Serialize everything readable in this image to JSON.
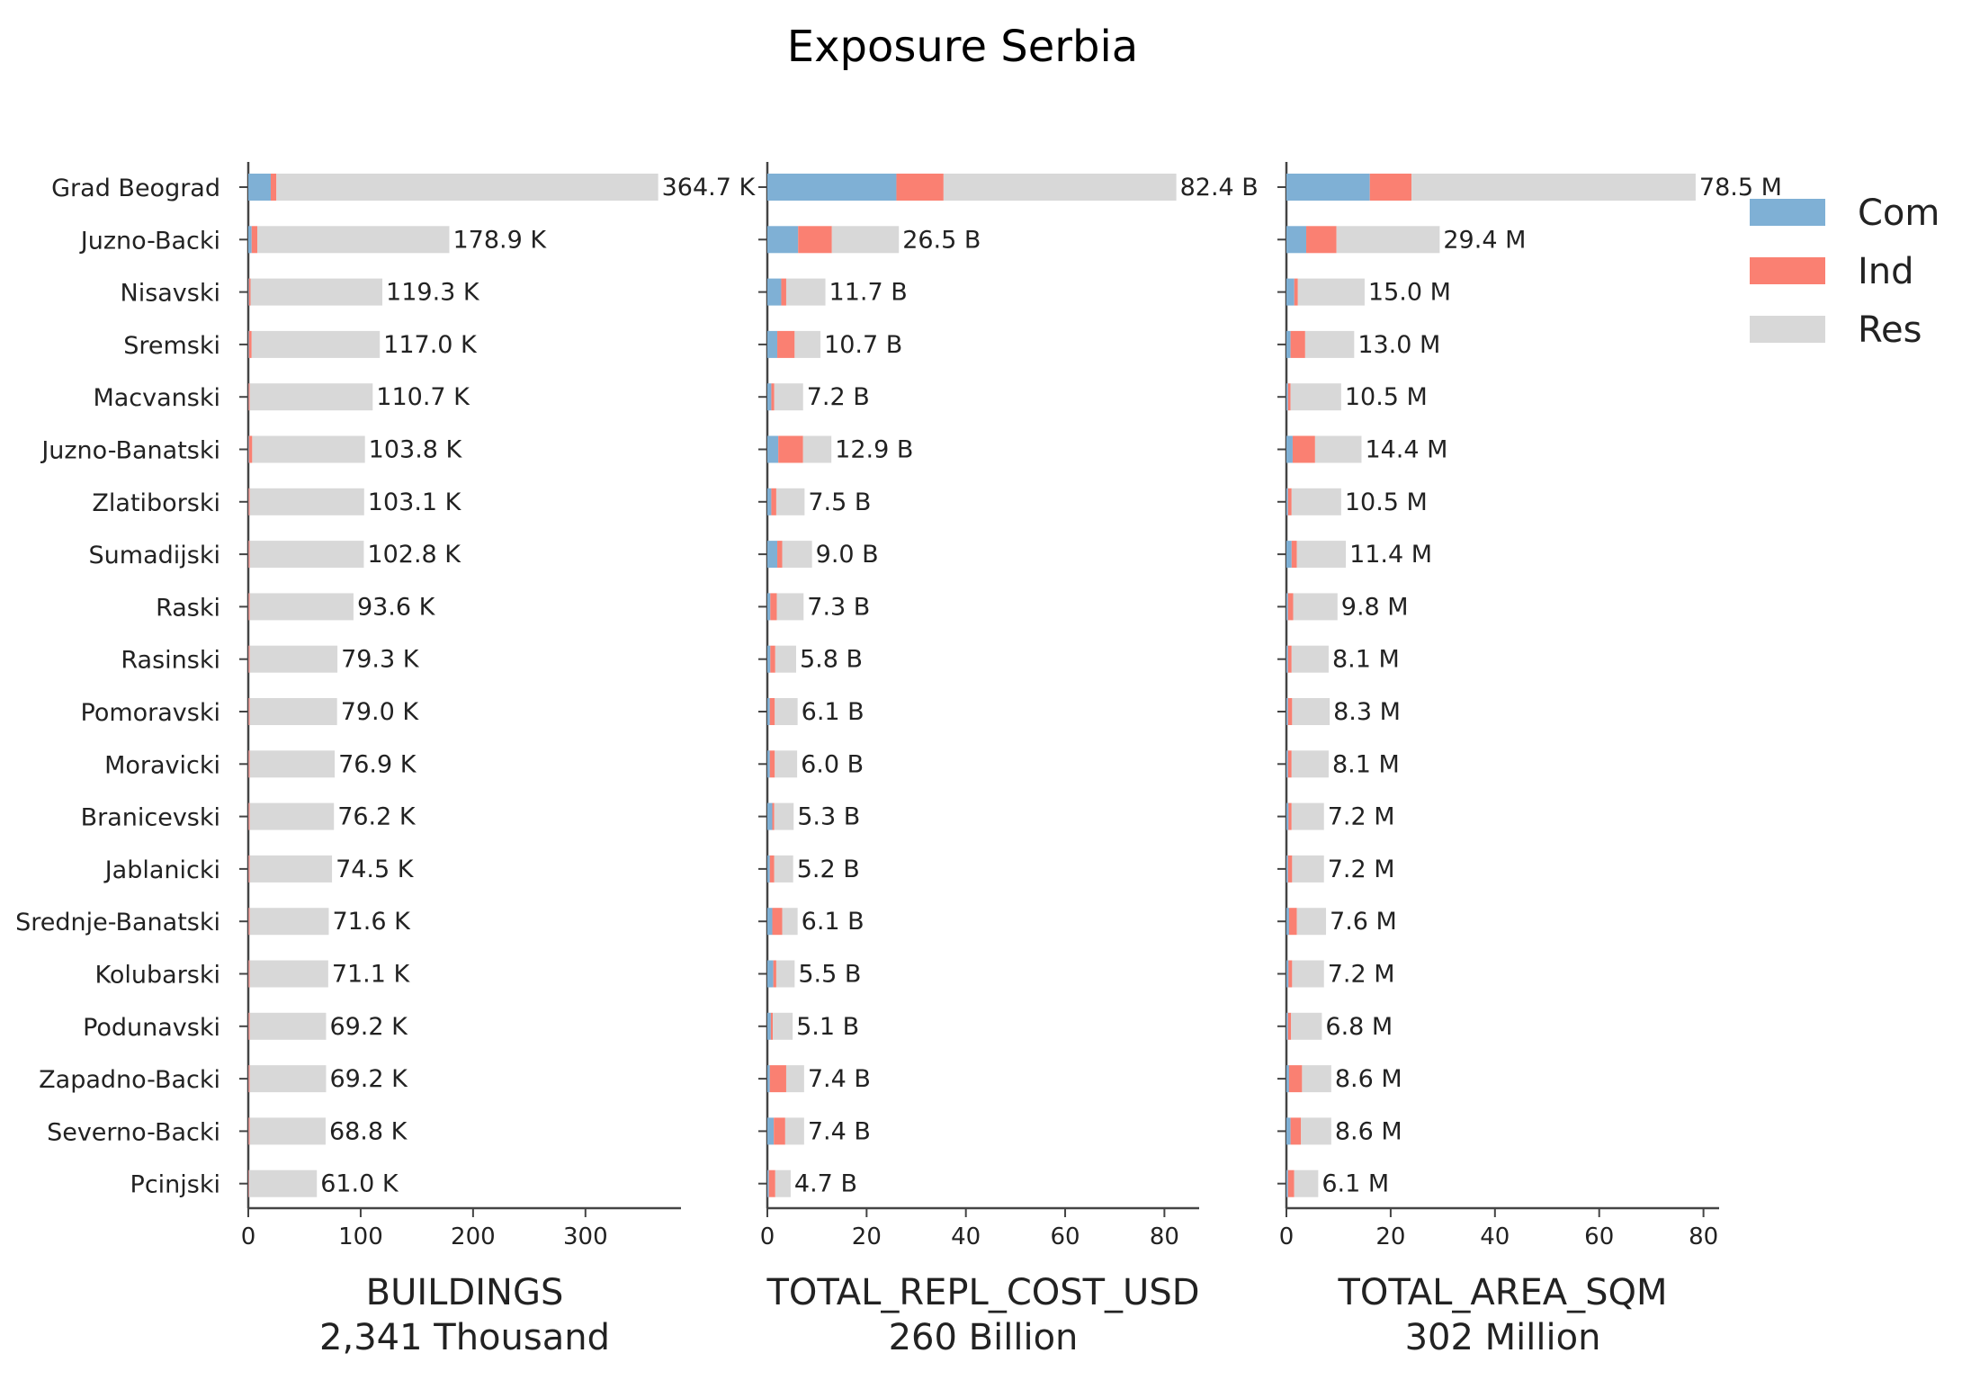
{
  "chart_data": {
    "type": "bar",
    "title": "Exposure Serbia",
    "categories": [
      "Grad Beograd",
      "Juzno-Backi",
      "Nisavski",
      "Sremski",
      "Macvanski",
      "Juzno-Banatski",
      "Zlatiborski",
      "Sumadijski",
      "Raski",
      "Rasinski",
      "Pomoravski",
      "Moravicki",
      "Branicevski",
      "Jablanicki",
      "Srednje-Banatski",
      "Kolubarski",
      "Podunavski",
      "Zapadno-Backi",
      "Severno-Backi",
      "Pcinjski"
    ],
    "legend": {
      "position": "top-right",
      "entries": [
        {
          "name": "Com",
          "color": "#7fb0d5"
        },
        {
          "name": "Ind",
          "color": "#fa8072"
        },
        {
          "name": "Res",
          "color": "#d8d8d8"
        }
      ]
    },
    "grid": false,
    "panels": [
      {
        "xlabel": "BUILDINGS",
        "subtitle": "2,341 Thousand",
        "xlim": [
          0,
          385
        ],
        "xticks": [
          0,
          100,
          200,
          300
        ],
        "totals_labels": [
          "364.7 K",
          "178.9 K",
          "119.3 K",
          "117.0 K",
          "110.7 K",
          "103.8 K",
          "103.1 K",
          "102.8 K",
          "93.6 K",
          "79.3 K",
          "79.0 K",
          "76.9 K",
          "76.2 K",
          "74.5 K",
          "71.6 K",
          "71.1 K",
          "69.2 K",
          "69.2 K",
          "68.8 K",
          "61.0 K"
        ],
        "series": [
          {
            "name": "Com",
            "values": [
              20,
              3,
              0.5,
              0.5,
              0.3,
              0.5,
              0.3,
              0.3,
              0.3,
              0.3,
              0.3,
              0.3,
              0.3,
              0.3,
              0.3,
              0.3,
              0.3,
              0.3,
              0.3,
              0.3
            ]
          },
          {
            "name": "Ind",
            "values": [
              5,
              5,
              1.5,
              2.5,
              1,
              3,
              1,
              1,
              1,
              1,
              1,
              1,
              1,
              1,
              1,
              1,
              1,
              1,
              1,
              0.5
            ]
          },
          {
            "name": "Res",
            "values": [
              339.7,
              170.9,
              117.3,
              114.0,
              109.4,
              100.3,
              101.8,
              101.5,
              92.3,
              78.0,
              77.7,
              75.6,
              74.9,
              73.2,
              70.3,
              69.8,
              67.9,
              67.9,
              67.5,
              60.2
            ]
          }
        ]
      },
      {
        "xlabel": "TOTAL_REPL_COST_USD",
        "subtitle": "260 Billion",
        "xlim": [
          0,
          87
        ],
        "xticks": [
          0,
          20,
          40,
          60,
          80
        ],
        "totals_labels": [
          "82.4 B",
          "26.5 B",
          "11.7 B",
          "10.7 B",
          "7.2 B",
          "12.9 B",
          "7.5 B",
          "9.0 B",
          "7.3 B",
          "5.8 B",
          "6.1 B",
          "6.0 B",
          "5.3 B",
          "5.2 B",
          "6.1 B",
          "5.5 B",
          "5.1 B",
          "7.4 B",
          "7.4 B",
          "4.7 B"
        ],
        "series": [
          {
            "name": "Com",
            "values": [
              26,
              6.2,
              2.8,
              2.0,
              0.8,
              2.2,
              0.8,
              2.0,
              0.6,
              0.6,
              0.5,
              0.5,
              1.0,
              0.5,
              1.0,
              1.2,
              0.7,
              0.5,
              1.3,
              0.3
            ]
          },
          {
            "name": "Ind",
            "values": [
              9.5,
              6.8,
              1.0,
              3.5,
              0.6,
              5.0,
              1.0,
              1.0,
              1.3,
              1.0,
              1.0,
              1.0,
              0.4,
              0.9,
              2.0,
              0.6,
              0.4,
              3.3,
              2.3,
              1.3
            ]
          },
          {
            "name": "Res",
            "values": [
              46.9,
              13.5,
              7.9,
              5.2,
              5.8,
              5.7,
              5.7,
              6.0,
              5.4,
              4.2,
              4.6,
              4.5,
              3.9,
              3.8,
              3.1,
              3.7,
              4.0,
              3.6,
              3.8,
              3.1
            ]
          }
        ]
      },
      {
        "xlabel": "TOTAL_AREA_SQM",
        "subtitle": "302 Million",
        "xlim": [
          0,
          83
        ],
        "xticks": [
          0,
          20,
          40,
          60,
          80
        ],
        "totals_labels": [
          "78.5 M",
          "29.4 M",
          "15.0 M",
          "13.0 M",
          "10.5 M",
          "14.4 M",
          "10.5 M",
          "11.4 M",
          "9.8 M",
          "8.1 M",
          "8.3 M",
          "8.1 M",
          "7.2 M",
          "7.2 M",
          "7.6 M",
          "7.2 M",
          "6.8 M",
          "8.6 M",
          "8.6 M",
          "6.1 M"
        ],
        "series": [
          {
            "name": "Com",
            "values": [
              16,
              3.8,
              1.5,
              0.8,
              0.3,
              1.2,
              0.3,
              1.0,
              0.3,
              0.3,
              0.3,
              0.3,
              0.4,
              0.3,
              0.5,
              0.4,
              0.3,
              0.5,
              0.8,
              0.3
            ]
          },
          {
            "name": "Ind",
            "values": [
              8,
              5.8,
              0.7,
              2.8,
              0.5,
              4.3,
              0.7,
              1.0,
              1.0,
              0.7,
              0.8,
              0.7,
              0.6,
              0.8,
              1.5,
              0.7,
              0.6,
              2.5,
              2.0,
              1.2
            ]
          },
          {
            "name": "Res",
            "values": [
              54.5,
              19.8,
              12.8,
              9.4,
              9.7,
              8.9,
              9.5,
              9.4,
              8.5,
              7.1,
              7.2,
              7.1,
              6.2,
              6.1,
              5.6,
              6.1,
              5.9,
              5.6,
              5.8,
              4.6
            ]
          }
        ]
      }
    ]
  }
}
